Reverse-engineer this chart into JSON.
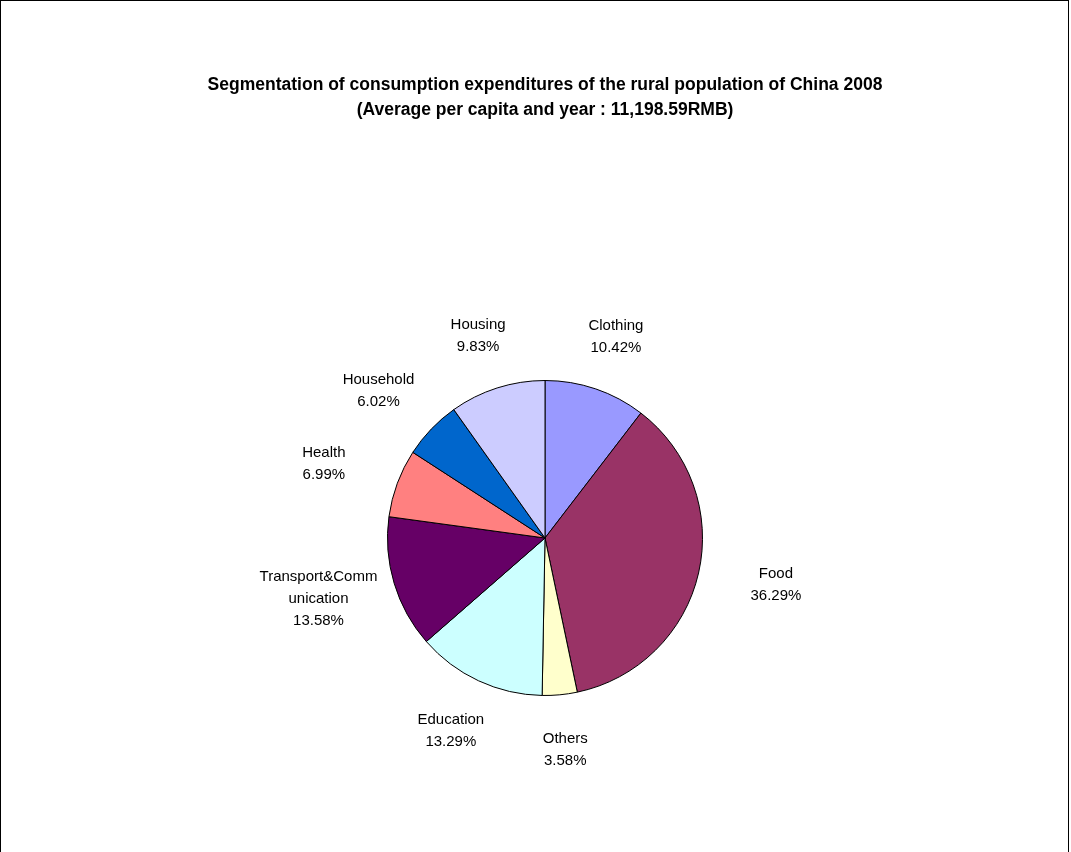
{
  "chart_data": {
    "type": "pie",
    "title": "Segmentation of consumption expenditures of the rural population of China 2008",
    "subtitle": "(Average per capita and year : 11,198.59RMB)",
    "categories": [
      "Clothing",
      "Food",
      "Others",
      "Education",
      "Transport&Communication",
      "Health",
      "Household",
      "Housing"
    ],
    "values": [
      10.42,
      36.29,
      3.58,
      13.29,
      13.58,
      6.99,
      6.02,
      9.83
    ],
    "value_labels": [
      "10.42%",
      "36.29%",
      "3.58%",
      "13.29%",
      "13.58%",
      "6.99%",
      "6.02%",
      "9.83%"
    ],
    "colors": [
      "#9999ff",
      "#993366",
      "#ffffcc",
      "#ccffff",
      "#660066",
      "#ff8080",
      "#0066cc",
      "#ccccff"
    ],
    "legend": false
  }
}
